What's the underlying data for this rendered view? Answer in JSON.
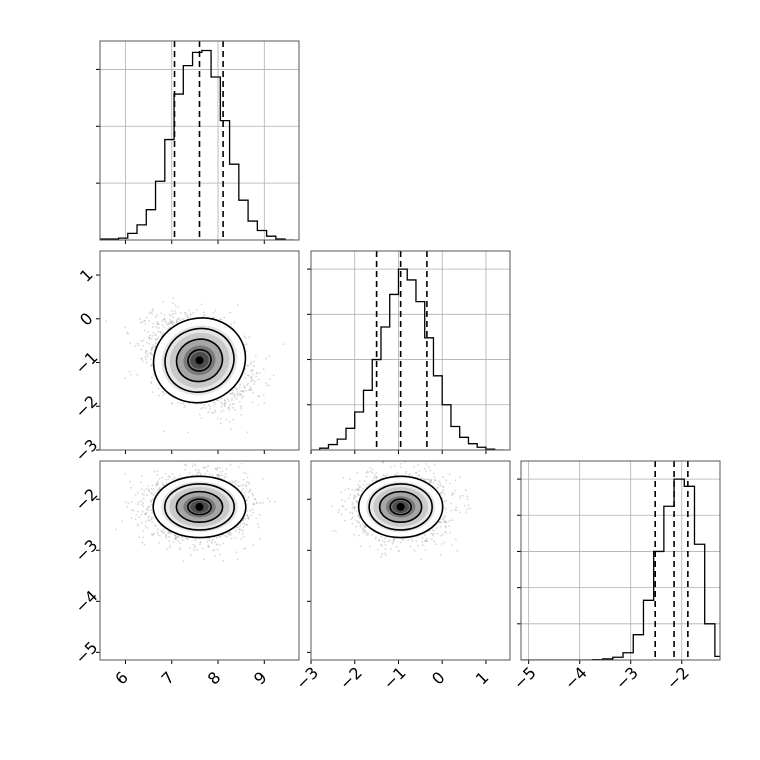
{
  "chart_data": {
    "type": "corner",
    "colors": {
      "scatter": "#8c8c8c",
      "line": "#000000",
      "grid": "#b0b0b0",
      "frame": "#555555"
    },
    "grid": true,
    "parameters": [
      {
        "index": 0,
        "range": [
          5.45,
          9.75
        ],
        "ticks": [
          6,
          7,
          8,
          9
        ],
        "tick_labels": [
          "6",
          "7",
          "8",
          "9"
        ],
        "mean": 7.6,
        "sd": 0.5,
        "quantiles": [
          7.06,
          7.6,
          8.11
        ]
      },
      {
        "index": 1,
        "range": [
          -3.0,
          1.55
        ],
        "ticks": [
          -3,
          -2,
          -1,
          0,
          1
        ],
        "tick_labels": [
          "−3",
          "−2",
          "−1",
          "0",
          "1"
        ],
        "mean": -0.95,
        "sd": 0.48,
        "quantiles": [
          -1.5,
          -0.95,
          -0.35
        ]
      },
      {
        "index": 2,
        "range": [
          -5.15,
          -1.25
        ],
        "ticks": [
          -5,
          -4,
          -3,
          -2
        ],
        "tick_labels": [
          "−5",
          "−4",
          "−3",
          "−2"
        ],
        "mean": -2.15,
        "sd": 0.3,
        "quantiles": [
          -2.52,
          -2.15,
          -1.88
        ]
      }
    ],
    "panels": [
      {
        "type": "histogram",
        "param": 0,
        "row": 0,
        "col": 0,
        "bins": [
          5.45,
          5.65,
          5.85,
          6.05,
          6.25,
          6.45,
          6.65,
          6.85,
          7.05,
          7.25,
          7.45,
          7.65,
          7.85,
          8.05,
          8.25,
          8.45,
          8.65,
          8.85,
          9.05,
          9.25,
          9.45,
          9.65
        ],
        "counts": [
          0.005,
          0.005,
          0.01,
          0.035,
          0.08,
          0.16,
          0.31,
          0.53,
          0.77,
          0.92,
          0.99,
          1.0,
          0.86,
          0.63,
          0.4,
          0.21,
          0.1,
          0.05,
          0.02,
          0.005,
          0.0
        ],
        "ymax": 1.05,
        "yticks": [
          0.3,
          0.6,
          0.9
        ]
      },
      {
        "type": "histogram",
        "param": 1,
        "row": 1,
        "col": 1,
        "bins": [
          -3.0,
          -2.8,
          -2.6,
          -2.4,
          -2.2,
          -2.0,
          -1.8,
          -1.6,
          -1.4,
          -1.2,
          -1.0,
          -0.8,
          -0.6,
          -0.4,
          -0.2,
          0.0,
          0.2,
          0.4,
          0.6,
          0.8,
          1.0,
          1.2,
          1.4
        ],
        "counts": [
          0.0,
          0.01,
          0.03,
          0.06,
          0.12,
          0.21,
          0.33,
          0.5,
          0.68,
          0.86,
          1.0,
          0.94,
          0.82,
          0.62,
          0.41,
          0.25,
          0.13,
          0.07,
          0.035,
          0.015,
          0.005,
          0.0
        ],
        "ymax": 1.1,
        "yticks": [
          0.25,
          0.5,
          0.75,
          1.0
        ]
      },
      {
        "type": "histogram",
        "param": 2,
        "row": 2,
        "col": 2,
        "bins": [
          -5.15,
          -4.95,
          -4.75,
          -4.55,
          -4.35,
          -4.15,
          -3.95,
          -3.75,
          -3.55,
          -3.35,
          -3.15,
          -2.95,
          -2.75,
          -2.55,
          -2.35,
          -2.15,
          -1.95,
          -1.75,
          -1.55,
          -1.35,
          -1.25
        ],
        "counts": [
          0.0,
          0.0,
          0.0,
          0.0,
          0.0,
          0.0,
          0.0,
          0.002,
          0.006,
          0.015,
          0.04,
          0.14,
          0.33,
          0.6,
          0.85,
          1.0,
          0.96,
          0.64,
          0.2,
          0.02
        ],
        "ymax": 1.1,
        "yticks": [
          0.2,
          0.4,
          0.6,
          0.8,
          1.0
        ]
      },
      {
        "type": "2d",
        "x": 0,
        "y": 1,
        "row": 1,
        "col": 0,
        "center": [
          7.6,
          -0.95
        ],
        "corr": -0.35
      },
      {
        "type": "2d",
        "x": 0,
        "y": 2,
        "row": 2,
        "col": 0,
        "center": [
          7.6,
          -2.15
        ],
        "corr": 0.0
      },
      {
        "type": "2d",
        "x": 1,
        "y": 2,
        "row": 2,
        "col": 1,
        "center": [
          -0.95,
          -2.15
        ],
        "corr": 0.0
      }
    ],
    "contour_levels": [
      0.5,
      1.0,
      1.5,
      2.0
    ]
  }
}
